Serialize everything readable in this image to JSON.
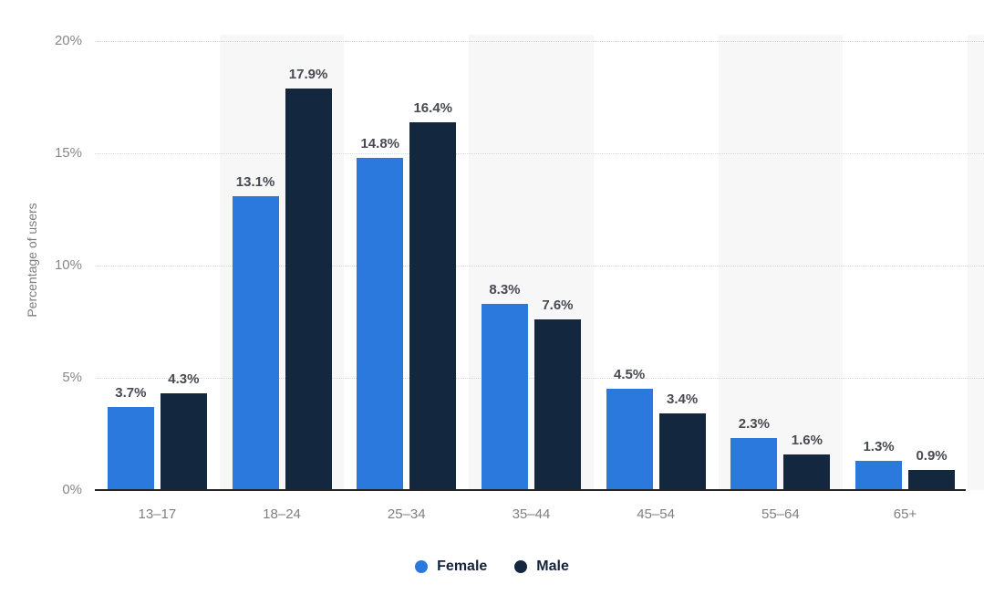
{
  "chart_data": {
    "type": "bar",
    "title": "",
    "categories": [
      "13–17",
      "18–24",
      "25–34",
      "35–44",
      "45–54",
      "55–64",
      "65+"
    ],
    "series": [
      {
        "name": "Female",
        "color": "#2b79dd",
        "values": [
          3.7,
          13.1,
          14.8,
          8.3,
          4.5,
          2.3,
          1.3
        ]
      },
      {
        "name": "Male",
        "color": "#13283f",
        "values": [
          4.3,
          17.9,
          16.4,
          7.6,
          3.4,
          1.6,
          0.9
        ]
      }
    ],
    "value_label_suffix": "%",
    "xlabel": "",
    "ylabel": "Percentage of users",
    "ylim": [
      0,
      20
    ],
    "y_ticks": [
      "0%",
      "5%",
      "10%",
      "15%",
      "20%"
    ],
    "grid": "horizontal-dotted",
    "legend_position": "bottom-center",
    "plot_band_colors": [
      "#ffffff",
      "#f7f7f7"
    ]
  },
  "colors": {
    "background": "#ffffff",
    "female_bar": "#2b79dd",
    "male_bar": "#13283f",
    "value_label": "#474a52",
    "axis_text": "#878787",
    "gridline": "#d8d8d8",
    "baseline": "#262626",
    "band_alt": "#f7f7f7",
    "legend_text": "#15243a"
  }
}
